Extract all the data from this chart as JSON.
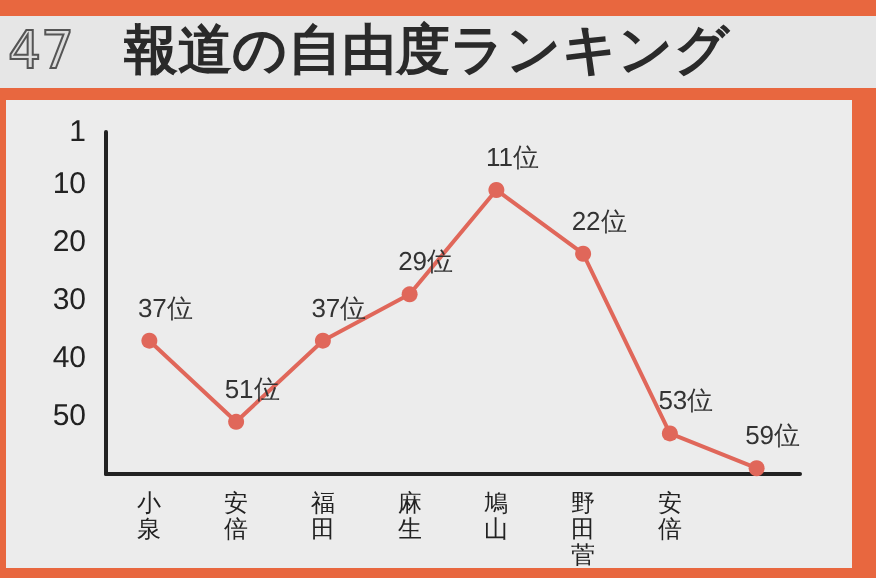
{
  "chart_data": {
    "type": "line",
    "title": "報道の自由度ランキング",
    "annotations": [
      "47"
    ],
    "categories": [
      "小泉",
      "安倍",
      "福田",
      "麻生",
      "鳩山",
      "野田菅",
      "安倍",
      null
    ],
    "series": [
      {
        "color": "#e0675a",
        "values": [
          37,
          51,
          37,
          29,
          11,
          22,
          53,
          59
        ],
        "value_labels": [
          "37位",
          "51位",
          "37位",
          "29位",
          "11位",
          "22位",
          "53位",
          "59位"
        ]
      }
    ],
    "ylim": [
      60,
      1
    ],
    "yticks": [
      1,
      10,
      20,
      30,
      40,
      50
    ],
    "grid": false,
    "marker": "circle",
    "line_style": "solid"
  }
}
